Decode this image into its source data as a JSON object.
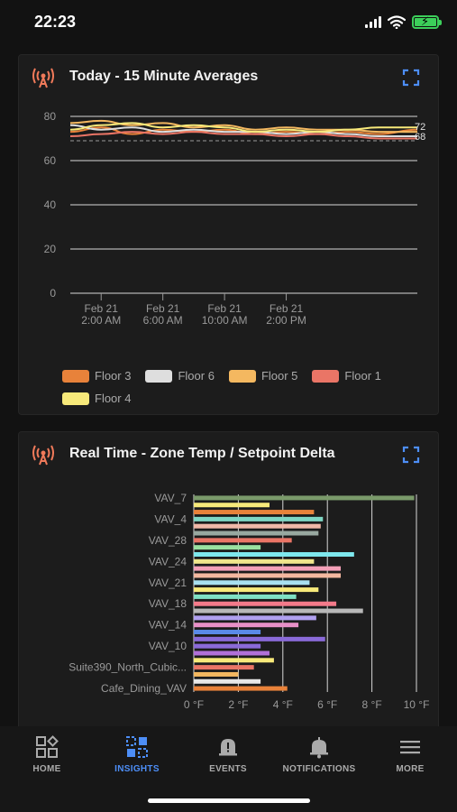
{
  "status": {
    "time": "22:23"
  },
  "line_card": {
    "title": "Today - 15 Minute Averages",
    "end_label_top": "72",
    "end_label_bottom": "68"
  },
  "bar_card": {
    "title": "Real Time - Zone Temp / Setpoint Delta"
  },
  "chart_data": [
    {
      "type": "line",
      "title": "Today - 15 Minute Averages",
      "x_ticks": [
        [
          "Feb 21",
          "2:00 AM"
        ],
        [
          "Feb 21",
          "6:00 AM"
        ],
        [
          "Feb 21",
          "10:00 AM"
        ],
        [
          "Feb 21",
          "2:00 PM"
        ]
      ],
      "x_range_hours": [
        0,
        22.5
      ],
      "y_ticks": [
        0,
        20,
        40,
        60,
        80
      ],
      "ylim": [
        0,
        80
      ],
      "reference_line": 69,
      "legend_placement": "bottom",
      "series": [
        {
          "name": "Floor 3",
          "color": "#e8823a",
          "x": [
            0,
            2,
            4,
            6,
            8,
            10,
            12,
            14,
            16,
            18,
            20,
            22.5
          ],
          "values": [
            73,
            75,
            72,
            74,
            73,
            74,
            72,
            73,
            72,
            73,
            72,
            74
          ]
        },
        {
          "name": "Floor 6",
          "color": "#dedede",
          "x": [
            0,
            2,
            4,
            6,
            8,
            10,
            12,
            14,
            16,
            18,
            20,
            22.5
          ],
          "values": [
            76,
            74,
            75,
            73,
            74,
            73,
            73,
            72,
            73,
            72,
            71,
            71
          ]
        },
        {
          "name": "Floor 5",
          "color": "#f4b860",
          "x": [
            0,
            2,
            4,
            6,
            8,
            10,
            12,
            14,
            16,
            18,
            20,
            22.5
          ],
          "values": [
            77,
            78,
            76,
            77,
            75,
            76,
            74,
            75,
            74,
            74,
            73,
            73
          ]
        },
        {
          "name": "Floor 1",
          "color": "#ea7566",
          "x": [
            0,
            2,
            4,
            6,
            8,
            10,
            12,
            14,
            16,
            18,
            20,
            22.5
          ],
          "values": [
            71,
            72,
            73,
            72,
            73,
            72,
            72,
            71,
            72,
            71,
            70,
            70
          ]
        },
        {
          "name": "Floor 4",
          "color": "#f7e97a",
          "x": [
            0,
            2,
            4,
            6,
            8,
            10,
            12,
            14,
            16,
            18,
            20,
            22.5
          ],
          "values": [
            74,
            76,
            77,
            75,
            76,
            75,
            73,
            74,
            73,
            74,
            75,
            75
          ]
        }
      ]
    },
    {
      "type": "bar",
      "orientation": "horizontal",
      "title": "Real Time - Zone Temp / Setpoint Delta",
      "x_ticks": [
        "0 °F",
        "2 °F",
        "4 °F",
        "6 °F",
        "8 °F",
        "10 °F"
      ],
      "xlim": [
        0,
        10
      ],
      "category_labels": [
        "VAV_7",
        "VAV_4",
        "VAV_28",
        "VAV_24",
        "VAV_21",
        "VAV_18",
        "VAV_14",
        "VAV_10",
        "Suite390_North_Cubic...",
        "Cafe_Dining_VAV"
      ],
      "values": [
        9.9,
        3.4,
        5.4,
        5.8,
        5.7,
        5.6,
        4.4,
        3.0,
        7.2,
        5.4,
        6.6,
        6.6,
        5.2,
        5.6,
        4.6,
        6.4,
        7.6,
        5.5,
        4.7,
        3.0,
        5.9,
        3.0,
        3.4,
        3.6,
        2.7,
        2.0,
        3.0,
        4.2
      ],
      "colors": [
        "#7a9a6a",
        "#f7e97a",
        "#e8823a",
        "#7fd6c4",
        "#f0b8a8",
        "#98a8a0",
        "#ea7566",
        "#9ae0a0",
        "#7ee8ee",
        "#f0e68c",
        "#f4a0b8",
        "#f4b8a0",
        "#a8e0f0",
        "#f7e97a",
        "#7fe0c4",
        "#f47a8a",
        "#b8b8b8",
        "#b0a0f0",
        "#e890c8",
        "#5a8ae8",
        "#8a6ad8",
        "#8a6ad8",
        "#b070d8",
        "#f7e97a",
        "#ea7566",
        "#f4b860",
        "#e8e8e8",
        "#e8823a"
      ]
    }
  ],
  "nav": {
    "home": "HOME",
    "insights": "INSIGHTS",
    "events": "EVENTS",
    "notifications": "NOTIFICATIONS",
    "more": "MORE"
  },
  "colors": {
    "accent": "#4d8ef7",
    "icon_red": "#f07a5a"
  }
}
